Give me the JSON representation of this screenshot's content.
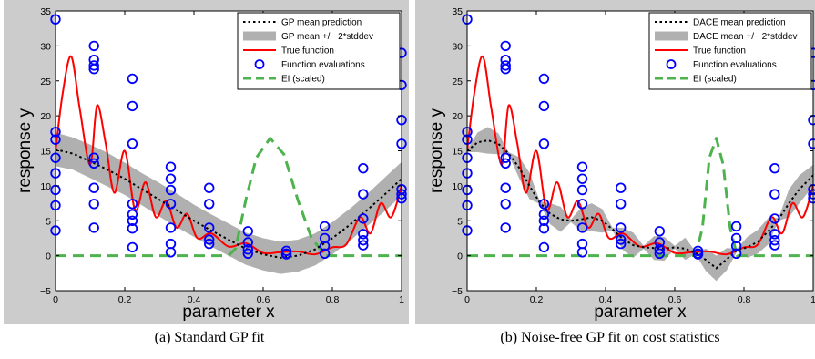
{
  "colors": {
    "frame_bg": "#cccccc",
    "plot_bg": "#ffffff",
    "mean": "#000000",
    "band": "#b0b0b0",
    "true_fn": "#ff0000",
    "evals": "#0000ff",
    "ei": "#4db34d"
  },
  "captions": {
    "left": "(a)  Standard GP fit",
    "right": "(b)  Noise-free GP fit on cost statistics"
  },
  "chart_data": [
    {
      "type": "line",
      "xlabel": "parameter x",
      "ylabel": "response y",
      "xlim": [
        0,
        1
      ],
      "ylim": [
        -5,
        35
      ],
      "xticks": [
        0,
        0.2,
        0.4,
        0.6,
        0.8,
        1
      ],
      "xtick_labels": [
        "0",
        "0.2",
        "0.4",
        "0.6",
        "0.8",
        "1"
      ],
      "yticks": [
        -5,
        0,
        5,
        10,
        15,
        20,
        25,
        30,
        35
      ],
      "ytick_labels": [
        "−5",
        "0",
        "5",
        "10",
        "15",
        "20",
        "25",
        "30",
        "35"
      ],
      "grid": false,
      "legend_position": "top-right",
      "legend": [
        "GP mean prediction",
        "GP mean +/− 2*stddev",
        "True function",
        "Function evaluations",
        "EI (scaled)"
      ],
      "series": [
        {
          "name": "GP mean prediction",
          "x": [
            0,
            0.05,
            0.1,
            0.15,
            0.2,
            0.25,
            0.3,
            0.35,
            0.4,
            0.45,
            0.5,
            0.55,
            0.6,
            0.65,
            0.7,
            0.75,
            0.8,
            0.85,
            0.9,
            0.95,
            1
          ],
          "y": [
            15.2,
            14.6,
            13.5,
            12.3,
            11.0,
            9.5,
            8.0,
            6.5,
            5.0,
            3.6,
            2.3,
            1.0,
            0.2,
            -0.3,
            0.0,
            0.9,
            2.5,
            4.4,
            6.5,
            8.7,
            11.0
          ]
        },
        {
          "name": "GP mean +/− 2*stddev",
          "x": [
            0,
            0.05,
            0.1,
            0.15,
            0.2,
            0.25,
            0.3,
            0.35,
            0.4,
            0.45,
            0.5,
            0.55,
            0.6,
            0.65,
            0.7,
            0.75,
            0.8,
            0.85,
            0.9,
            0.95,
            1
          ],
          "upper": [
            17.6,
            16.9,
            15.9,
            14.7,
            13.3,
            11.8,
            10.4,
            8.9,
            7.3,
            5.9,
            4.6,
            3.3,
            2.5,
            2.0,
            2.3,
            3.2,
            4.8,
            6.7,
            8.8,
            11.1,
            13.4
          ],
          "lower": [
            12.8,
            12.3,
            11.1,
            9.9,
            8.7,
            7.2,
            5.6,
            4.1,
            2.7,
            1.3,
            0.0,
            -1.3,
            -2.1,
            -2.6,
            -2.3,
            -1.4,
            0.2,
            2.1,
            4.2,
            6.3,
            8.6
          ]
        },
        {
          "name": "True function",
          "x": [
            0,
            0.02,
            0.045,
            0.07,
            0.1,
            0.12,
            0.145,
            0.17,
            0.2,
            0.23,
            0.26,
            0.29,
            0.32,
            0.35,
            0.38,
            0.41,
            0.45,
            0.5,
            0.55,
            0.6,
            0.65,
            0.7,
            0.75,
            0.8,
            0.84,
            0.88,
            0.91,
            0.94,
            0.97,
            1
          ],
          "y": [
            15.0,
            23.0,
            28.5,
            21.0,
            13.0,
            21.5,
            16.0,
            9.0,
            15.0,
            6.5,
            10.5,
            5.5,
            7.8,
            4.0,
            6.0,
            2.5,
            3.2,
            1.3,
            1.8,
            0.4,
            0.5,
            0.6,
            0.2,
            1.2,
            1.6,
            5.5,
            3.2,
            7.5,
            5.5,
            10.0
          ]
        },
        {
          "name": "Function evaluations",
          "x": [
            0,
            0,
            0,
            0,
            0,
            0,
            0,
            0,
            0.111,
            0.111,
            0.111,
            0.111,
            0.111,
            0.111,
            0.111,
            0.111,
            0.111,
            0.222,
            0.222,
            0.222,
            0.222,
            0.222,
            0.222,
            0.222,
            0.222,
            0.333,
            0.333,
            0.333,
            0.333,
            0.333,
            0.333,
            0.333,
            0.444,
            0.444,
            0.444,
            0.444,
            0.444,
            0.556,
            0.556,
            0.556,
            0.556,
            0.667,
            0.667,
            0.667,
            0.778,
            0.778,
            0.778,
            0.778,
            0.889,
            0.889,
            0.889,
            0.889,
            0.889,
            0.889,
            1,
            1,
            1,
            1,
            1,
            1,
            1
          ],
          "y": [
            33.8,
            17.7,
            16.6,
            14.0,
            11.8,
            9.4,
            7.2,
            3.6,
            30.0,
            28.0,
            27.2,
            26.7,
            14.0,
            13.2,
            9.7,
            7.4,
            4.0,
            25.3,
            21.4,
            16.0,
            7.4,
            5.9,
            5.0,
            3.9,
            1.2,
            12.7,
            11.0,
            9.4,
            7.4,
            4.0,
            1.7,
            0.5,
            9.7,
            7.4,
            4.0,
            2.3,
            1.7,
            3.5,
            1.9,
            0.9,
            0.3,
            0.7,
            0.3,
            0.2,
            4.2,
            2.5,
            1.4,
            0.3,
            12.5,
            8.8,
            5.3,
            3.1,
            2.2,
            1.5,
            29.0,
            24.4,
            19.4,
            16.0,
            9.5,
            8.8,
            8.2
          ]
        },
        {
          "name": "EI (scaled)",
          "x": [
            0,
            0.5,
            0.52,
            0.55,
            0.58,
            0.62,
            0.66,
            0.7,
            0.74,
            0.78,
            1
          ],
          "y": [
            0,
            0,
            1.0,
            8.0,
            14.0,
            16.8,
            14.5,
            8.0,
            2.5,
            0,
            0
          ]
        }
      ]
    },
    {
      "type": "line",
      "xlabel": "parameter x",
      "ylabel": "response y",
      "xlim": [
        0,
        1
      ],
      "ylim": [
        -5,
        35
      ],
      "xticks": [
        0,
        0.2,
        0.4,
        0.6,
        0.8,
        1
      ],
      "xtick_labels": [
        "0",
        "0.2",
        "0.4",
        "0.6",
        "0.8",
        "1"
      ],
      "yticks": [
        -5,
        0,
        5,
        10,
        15,
        20,
        25,
        30,
        35
      ],
      "ytick_labels": [
        "−5",
        "0",
        "5",
        "10",
        "15",
        "20",
        "25",
        "30",
        "35"
      ],
      "grid": false,
      "legend_position": "top-right",
      "legend": [
        "DACE mean prediction",
        "DACE mean +/− 2*stddev",
        "True function",
        "Function evaluations",
        "EI (scaled)"
      ],
      "series": [
        {
          "name": "DACE mean prediction",
          "x": [
            0,
            0.03,
            0.06,
            0.09,
            0.12,
            0.15,
            0.18,
            0.21,
            0.24,
            0.27,
            0.3,
            0.33,
            0.36,
            0.39,
            0.42,
            0.45,
            0.48,
            0.51,
            0.54,
            0.57,
            0.6,
            0.63,
            0.66,
            0.69,
            0.72,
            0.75,
            0.78,
            0.81,
            0.84,
            0.87,
            0.9,
            0.93,
            0.96,
            1
          ],
          "y": [
            15.0,
            16.2,
            16.5,
            16.0,
            14.6,
            12.6,
            10.0,
            7.6,
            6.0,
            5.2,
            5.0,
            5.2,
            5.5,
            5.0,
            3.8,
            2.4,
            1.5,
            1.2,
            1.1,
            1.0,
            1.2,
            1.0,
            0.4,
            -0.6,
            -1.8,
            -0.5,
            0.8,
            1.2,
            2.0,
            3.5,
            5.2,
            7.5,
            9.5,
            11.5
          ]
        },
        {
          "name": "DACE mean +/− 2*stddev",
          "x": [
            0,
            0.03,
            0.06,
            0.09,
            0.12,
            0.15,
            0.18,
            0.21,
            0.24,
            0.27,
            0.3,
            0.33,
            0.36,
            0.39,
            0.42,
            0.45,
            0.48,
            0.51,
            0.54,
            0.57,
            0.6,
            0.63,
            0.66,
            0.69,
            0.72,
            0.75,
            0.78,
            0.81,
            0.84,
            0.87,
            0.9,
            0.93,
            0.96,
            1
          ],
          "upper": [
            15.2,
            17.6,
            18.4,
            17.5,
            14.8,
            14.1,
            11.9,
            7.8,
            7.5,
            7.0,
            5.2,
            6.9,
            7.5,
            6.7,
            4.0,
            4.0,
            3.3,
            1.4,
            2.8,
            2.7,
            1.4,
            2.6,
            0.6,
            1.0,
            0.0,
            1.1,
            1.0,
            2.7,
            3.7,
            5.4,
            5.4,
            9.5,
            11.5,
            13.0
          ],
          "lower": [
            14.8,
            14.8,
            14.6,
            14.5,
            14.4,
            11.1,
            8.1,
            7.4,
            4.5,
            3.4,
            4.8,
            3.5,
            3.5,
            3.3,
            3.6,
            0.8,
            -0.3,
            1.0,
            -0.6,
            -0.7,
            1.0,
            -0.6,
            0.2,
            -2.2,
            -3.6,
            -2.1,
            0.6,
            -0.3,
            0.3,
            1.6,
            5.0,
            5.5,
            7.5,
            10.0
          ]
        },
        {
          "name": "True function",
          "x": [
            0,
            0.02,
            0.045,
            0.07,
            0.1,
            0.12,
            0.145,
            0.17,
            0.2,
            0.23,
            0.26,
            0.29,
            0.32,
            0.35,
            0.38,
            0.41,
            0.45,
            0.5,
            0.55,
            0.6,
            0.65,
            0.7,
            0.75,
            0.8,
            0.84,
            0.88,
            0.91,
            0.94,
            0.97,
            1
          ],
          "y": [
            15.0,
            23.0,
            28.5,
            21.0,
            13.0,
            21.5,
            16.0,
            9.0,
            15.0,
            6.5,
            10.5,
            5.5,
            7.8,
            4.0,
            6.0,
            2.5,
            3.2,
            1.3,
            1.8,
            0.4,
            0.5,
            0.6,
            0.2,
            1.2,
            1.6,
            5.5,
            3.2,
            7.5,
            5.5,
            10.0
          ]
        },
        {
          "name": "Function evaluations",
          "x": [
            0,
            0,
            0,
            0,
            0,
            0,
            0,
            0,
            0.111,
            0.111,
            0.111,
            0.111,
            0.111,
            0.111,
            0.111,
            0.111,
            0.111,
            0.222,
            0.222,
            0.222,
            0.222,
            0.222,
            0.222,
            0.222,
            0.222,
            0.333,
            0.333,
            0.333,
            0.333,
            0.333,
            0.333,
            0.333,
            0.444,
            0.444,
            0.444,
            0.444,
            0.444,
            0.556,
            0.556,
            0.556,
            0.556,
            0.667,
            0.667,
            0.667,
            0.778,
            0.778,
            0.778,
            0.778,
            0.889,
            0.889,
            0.889,
            0.889,
            0.889,
            0.889,
            1,
            1,
            1,
            1,
            1,
            1,
            1
          ],
          "y": [
            33.8,
            17.7,
            16.6,
            14.0,
            11.8,
            9.4,
            7.2,
            3.6,
            30.0,
            28.0,
            27.2,
            26.7,
            14.0,
            13.2,
            9.7,
            7.4,
            4.0,
            25.3,
            21.4,
            16.0,
            7.4,
            5.9,
            5.0,
            3.9,
            1.2,
            12.7,
            11.0,
            9.4,
            7.4,
            4.0,
            1.7,
            0.5,
            9.7,
            7.4,
            4.0,
            2.3,
            1.7,
            3.5,
            1.9,
            0.9,
            0.3,
            0.7,
            0.3,
            0.2,
            4.2,
            2.5,
            1.4,
            0.3,
            12.5,
            8.8,
            5.3,
            3.1,
            2.2,
            1.5,
            29.0,
            24.4,
            19.4,
            16.0,
            9.5,
            8.8,
            8.2
          ]
        },
        {
          "name": "EI (scaled)",
          "x": [
            0,
            0.66,
            0.68,
            0.7,
            0.72,
            0.74,
            0.76,
            0.78,
            1
          ],
          "y": [
            0,
            0,
            4.0,
            14.0,
            16.8,
            13.0,
            4.0,
            0,
            0
          ]
        }
      ]
    }
  ]
}
